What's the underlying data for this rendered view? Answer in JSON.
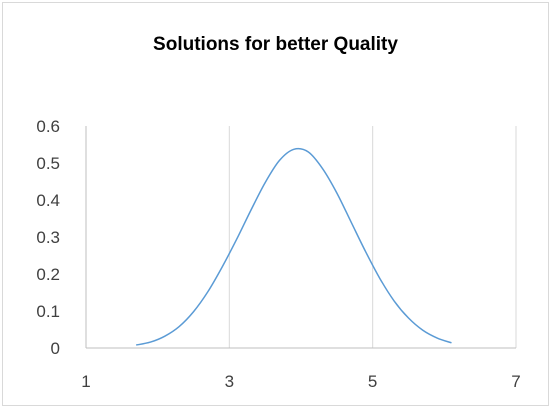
{
  "chart_data": {
    "type": "scatter",
    "mode": "smooth-line",
    "title": "Solutions for better Quality",
    "xlabel": "",
    "ylabel": "",
    "xlim": [
      1,
      7
    ],
    "ylim": [
      0,
      0.6
    ],
    "x_ticks": [
      1,
      3,
      5,
      7
    ],
    "y_ticks": [
      0,
      0.1,
      0.2,
      0.3,
      0.4,
      0.5,
      0.6
    ],
    "x_tick_labels": [
      "1",
      "3",
      "5",
      "7"
    ],
    "y_tick_labels": [
      "0",
      "0.1",
      "0.2",
      "0.3",
      "0.4",
      "0.5",
      "0.6"
    ],
    "grid": "vertical",
    "legend": "none",
    "series": [
      {
        "color": "#5b9bd5",
        "x": [
          1.7,
          1.9,
          2.1,
          2.3,
          2.5,
          2.7,
          2.9,
          3.1,
          3.3,
          3.5,
          3.7,
          3.9,
          4.1,
          4.3,
          4.5,
          4.7,
          4.9,
          5.1,
          5.3,
          5.5,
          5.7,
          5.9,
          6.1
        ],
        "y": [
          0.008,
          0.016,
          0.032,
          0.058,
          0.098,
          0.152,
          0.219,
          0.293,
          0.372,
          0.447,
          0.507,
          0.537,
          0.53,
          0.485,
          0.419,
          0.34,
          0.261,
          0.188,
          0.127,
          0.081,
          0.048,
          0.027,
          0.014
        ]
      }
    ]
  }
}
